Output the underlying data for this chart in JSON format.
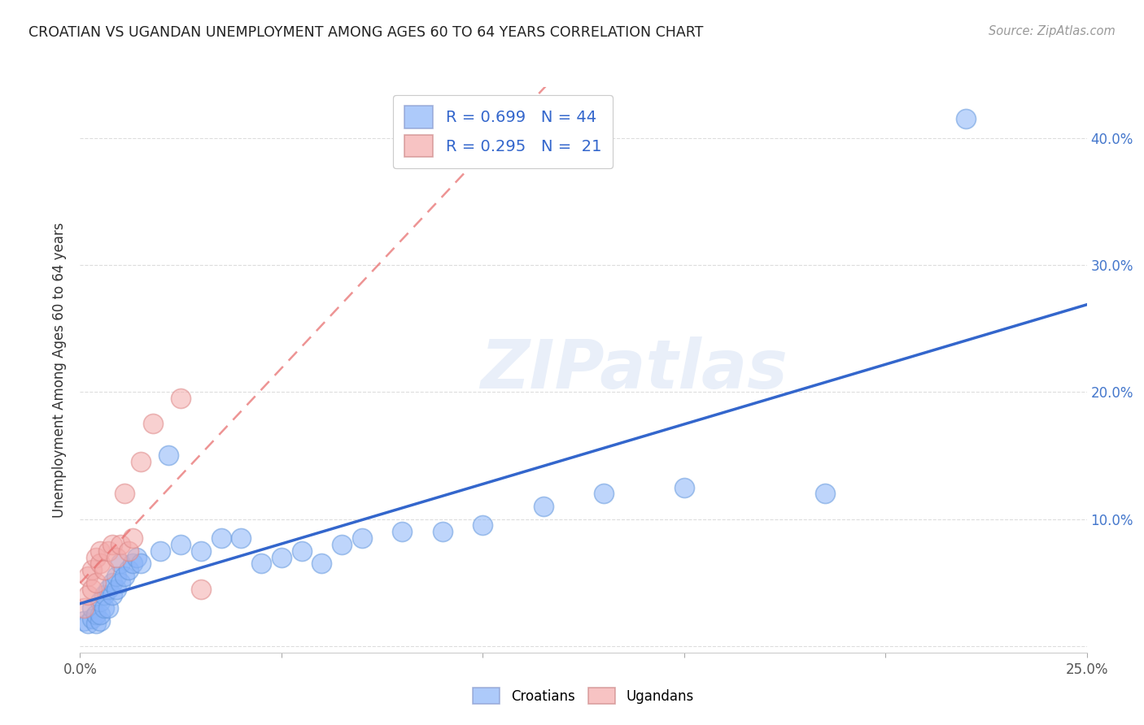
{
  "title": "CROATIAN VS UGANDAN UNEMPLOYMENT AMONG AGES 60 TO 64 YEARS CORRELATION CHART",
  "source": "Source: ZipAtlas.com",
  "ylabel": "Unemployment Among Ages 60 to 64 years",
  "xlim": [
    0.0,
    0.25
  ],
  "ylim": [
    -0.005,
    0.44
  ],
  "croatian_color": "#8AB4F8",
  "ugandan_color": "#F4AAAA",
  "croatian_line_color": "#3366CC",
  "ugandan_line_color": "#E87070",
  "croatian_R": 0.699,
  "croatian_N": 44,
  "ugandan_R": 0.295,
  "ugandan_N": 21,
  "croatian_x": [
    0.001,
    0.002,
    0.003,
    0.003,
    0.004,
    0.004,
    0.005,
    0.005,
    0.005,
    0.006,
    0.006,
    0.007,
    0.007,
    0.008,
    0.008,
    0.009,
    0.009,
    0.01,
    0.01,
    0.011,
    0.012,
    0.013,
    0.014,
    0.015,
    0.02,
    0.022,
    0.025,
    0.03,
    0.035,
    0.04,
    0.045,
    0.05,
    0.055,
    0.06,
    0.065,
    0.07,
    0.08,
    0.09,
    0.1,
    0.115,
    0.13,
    0.15,
    0.185,
    0.22
  ],
  "croatian_y": [
    0.02,
    0.018,
    0.022,
    0.03,
    0.018,
    0.025,
    0.02,
    0.025,
    0.035,
    0.03,
    0.04,
    0.03,
    0.045,
    0.04,
    0.05,
    0.045,
    0.055,
    0.05,
    0.065,
    0.055,
    0.06,
    0.065,
    0.07,
    0.065,
    0.075,
    0.15,
    0.08,
    0.075,
    0.085,
    0.085,
    0.065,
    0.07,
    0.075,
    0.065,
    0.08,
    0.085,
    0.09,
    0.09,
    0.095,
    0.11,
    0.12,
    0.125,
    0.12,
    0.415
  ],
  "ugandan_x": [
    0.001,
    0.002,
    0.002,
    0.003,
    0.003,
    0.004,
    0.004,
    0.005,
    0.005,
    0.006,
    0.007,
    0.008,
    0.009,
    0.01,
    0.011,
    0.012,
    0.013,
    0.015,
    0.018,
    0.025,
    0.03
  ],
  "ugandan_y": [
    0.03,
    0.04,
    0.055,
    0.045,
    0.06,
    0.05,
    0.07,
    0.065,
    0.075,
    0.06,
    0.075,
    0.08,
    0.07,
    0.08,
    0.12,
    0.075,
    0.085,
    0.145,
    0.175,
    0.195,
    0.045
  ],
  "watermark_text": "ZIPatlas",
  "background_color": "#FFFFFF",
  "grid_color": "#DDDDDD",
  "ytick_positions": [
    0.0,
    0.1,
    0.2,
    0.3,
    0.4
  ],
  "ytick_labels_right": [
    "",
    "10.0%",
    "20.0%",
    "30.0%",
    "40.0%"
  ],
  "xtick_positions": [
    0.0,
    0.05,
    0.1,
    0.15,
    0.2,
    0.25
  ],
  "xtick_labels": [
    "0.0%",
    "",
    "",
    "",
    "",
    "25.0%"
  ]
}
